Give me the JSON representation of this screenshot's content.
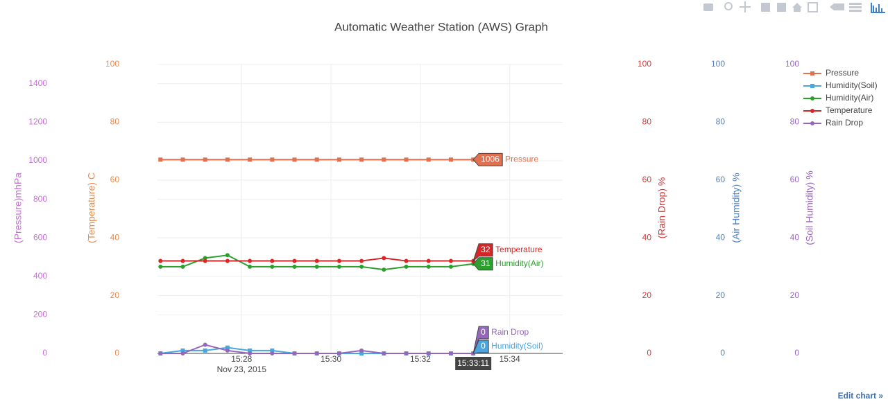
{
  "chart_data": {
    "type": "line",
    "title": "Automatic Weather Station (AWS) Graph",
    "x": [
      "2015-11-23 15:26:11",
      "2015-11-23 15:26:41",
      "2015-11-23 15:27:11",
      "2015-11-23 15:27:41",
      "2015-11-23 15:28:11",
      "2015-11-23 15:28:41",
      "2015-11-23 15:29:11",
      "2015-11-23 15:29:41",
      "2015-11-23 15:30:11",
      "2015-11-23 15:30:41",
      "2015-11-23 15:31:11",
      "2015-11-23 15:31:41",
      "2015-11-23 15:32:11",
      "2015-11-23 15:32:41",
      "2015-11-23 15:33:11"
    ],
    "xlim": [
      "2015-11-23 15:26:07",
      "2015-11-23 15:35:11"
    ],
    "xticks": [
      {
        "value": "2015-11-23 15:28:00",
        "label": "15:28"
      },
      {
        "value": "2015-11-23 15:30:00",
        "label": "15:30"
      },
      {
        "value": "2015-11-23 15:32:00",
        "label": "15:32"
      },
      {
        "value": "2015-11-23 15:34:00",
        "label": "15:34"
      }
    ],
    "x_date_label": "Nov 23, 2015",
    "grid": true,
    "legend": "top-right",
    "y_axes": [
      {
        "id": "y2",
        "title": "(Pressure)mhPa",
        "color": "#c86ed8",
        "ylim": [
          0,
          1500
        ],
        "yticks": [
          0,
          200,
          400,
          600,
          800,
          1000,
          1200,
          1400
        ]
      },
      {
        "id": "y",
        "title": "(Temperature) C",
        "color": "#ea8a4c",
        "ylim": [
          0,
          100
        ],
        "yticks": [
          0,
          20,
          40,
          60,
          80,
          100
        ]
      },
      {
        "id": "y3",
        "title": "(Rain Drop) %",
        "color": "#d43a3a",
        "ylim": [
          0,
          100
        ],
        "yticks": [
          0,
          20,
          40,
          60,
          80,
          100
        ]
      },
      {
        "id": "y4",
        "title": "(Air Humidity) %",
        "color": "#4f7fbf",
        "ylim": [
          0,
          100
        ],
        "yticks": [
          0,
          20,
          40,
          60,
          80,
          100
        ]
      },
      {
        "id": "y5",
        "title": "(Soil Humidity) %",
        "color": "#9a67c0",
        "ylim": [
          0,
          100
        ],
        "yticks": [
          0,
          20,
          40,
          60,
          80,
          100
        ]
      }
    ],
    "series": [
      {
        "name": "Pressure",
        "color": "#e0704f",
        "axis": "y2",
        "marker": "square",
        "values": [
          1006,
          1006,
          1006,
          1006,
          1006,
          1006,
          1006,
          1006,
          1006,
          1006,
          1006,
          1006,
          1006,
          1006,
          1006
        ]
      },
      {
        "name": "Humidity(Soil)",
        "color": "#4aa6e0",
        "axis": "y5",
        "marker": "square",
        "values": [
          0,
          1,
          1,
          2,
          1,
          1,
          0,
          0,
          0,
          0,
          0,
          0,
          0,
          0,
          0
        ]
      },
      {
        "name": "Humidity(Air)",
        "color": "#2ca02c",
        "axis": "y4",
        "marker": "circle",
        "values": [
          30,
          30,
          33,
          34,
          30,
          30,
          30,
          30,
          30,
          30,
          29,
          30,
          30,
          30,
          31
        ]
      },
      {
        "name": "Temperature",
        "color": "#d62728",
        "axis": "y",
        "marker": "circle",
        "values": [
          32,
          32,
          32,
          32,
          32,
          32,
          32,
          32,
          32,
          32,
          33,
          32,
          32,
          32,
          32
        ]
      },
      {
        "name": "Rain Drop",
        "color": "#9467bd",
        "axis": "y3",
        "marker": "circle",
        "values": [
          0,
          0,
          3,
          1,
          0,
          0,
          0,
          0,
          0,
          1,
          0,
          0,
          0,
          0,
          0
        ]
      }
    ],
    "hover_x_label": "15:33:11",
    "edit_link": "Edit chart »"
  }
}
